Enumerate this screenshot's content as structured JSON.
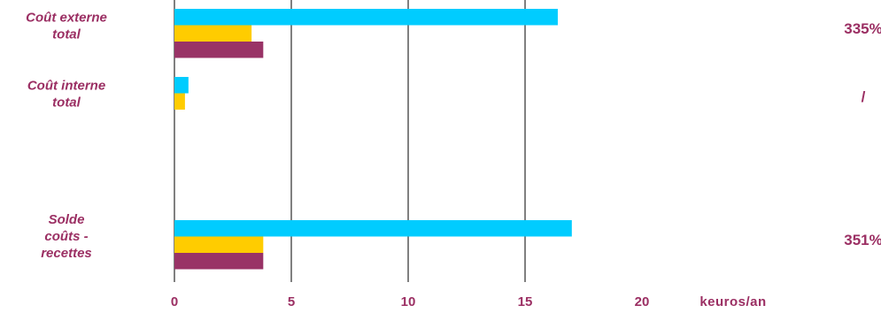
{
  "chart_data": {
    "type": "bar",
    "orientation": "horizontal",
    "categories": [
      [
        "Coût externe",
        "total"
      ],
      [
        "Coût interne",
        "total"
      ],
      [
        "Solde",
        "coûts -",
        "recettes"
      ]
    ],
    "series": [
      {
        "color": "#00ccff",
        "values": [
          16.4,
          0.6,
          17.0
        ]
      },
      {
        "color": "#ffcc00",
        "values": [
          3.3,
          0.45,
          3.8
        ]
      },
      {
        "color": "#993366",
        "values": [
          3.8,
          0,
          3.8
        ]
      }
    ],
    "percent_labels": [
      "335%",
      "/",
      "351%"
    ],
    "xticks": [
      "0",
      "5",
      "10",
      "15",
      "20"
    ],
    "xlim": [
      0,
      20
    ],
    "xlabel": "keuros/an",
    "grid": "vertical",
    "legend": "none"
  }
}
